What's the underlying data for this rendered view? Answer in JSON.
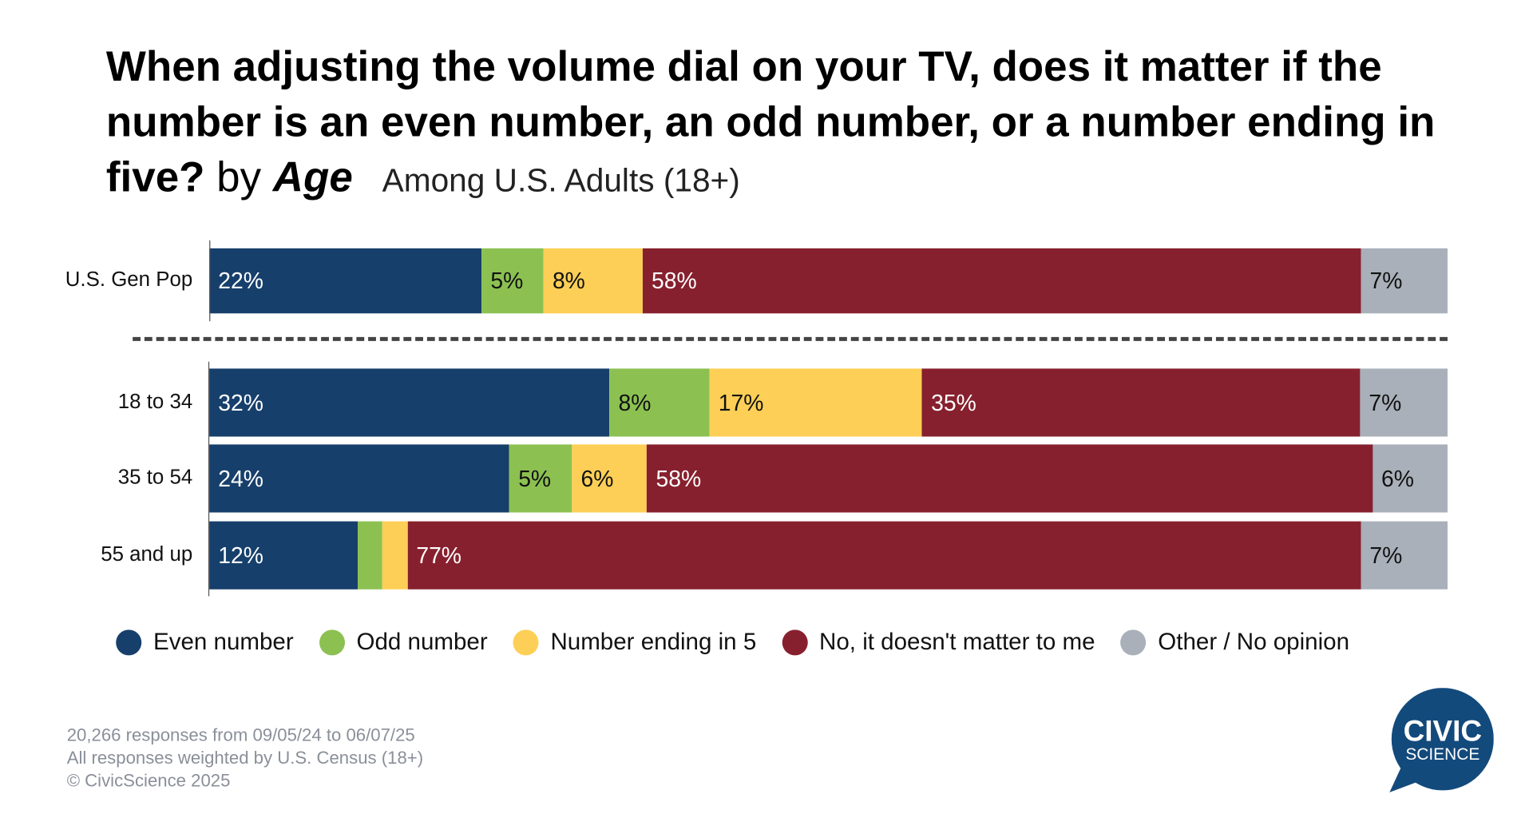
{
  "title": {
    "main": "When adjusting the volume dial on your TV, does it matter if the number is an even number, an odd number, or a number ending in five?",
    "by": "by",
    "segment": "Age",
    "subtitle": "Among U.S. Adults (18+)"
  },
  "chart_data": {
    "type": "bar",
    "orientation": "horizontal-stacked-100",
    "categories": [
      "U.S. Gen Pop",
      "18 to 34",
      "35 to 54",
      "55 and up"
    ],
    "series": [
      {
        "name": "Even number",
        "color": "#173F6B",
        "values": [
          22,
          32,
          24,
          12
        ],
        "labels": [
          "22%",
          "32%",
          "24%",
          "12%"
        ],
        "label_color": "#ffffff"
      },
      {
        "name": "Odd number",
        "color": "#8CC152",
        "values": [
          5,
          8,
          5,
          2
        ],
        "labels": [
          "5%",
          "8%",
          "5%",
          ""
        ],
        "label_color": "#111111"
      },
      {
        "name": "Number ending in 5",
        "color": "#FDCF56",
        "values": [
          8,
          17,
          6,
          2
        ],
        "labels": [
          "8%",
          "17%",
          "6%",
          ""
        ],
        "label_color": "#111111"
      },
      {
        "name": "No, it doesn't matter to me",
        "color": "#87202E",
        "values": [
          58,
          35,
          58,
          77
        ],
        "labels": [
          "58%",
          "35%",
          "58%",
          "77%"
        ],
        "label_color": "#ffffff"
      },
      {
        "name": "Other / No opinion",
        "color": "#A9B0BA",
        "values": [
          7,
          7,
          6,
          7
        ],
        "labels": [
          "7%",
          "7%",
          "6%",
          "7%"
        ],
        "label_color": "#111111"
      }
    ],
    "legend_position": "bottom",
    "grid": false
  },
  "footer": {
    "line1": "20,266 responses from 09/05/24 to 06/07/25",
    "line2": "All responses weighted by U.S. Census (18+)",
    "line3": "© CivicScience 2025"
  },
  "logo": {
    "text1": "CIVIC",
    "text2": "SCIENCE",
    "color": "#134A7C"
  }
}
